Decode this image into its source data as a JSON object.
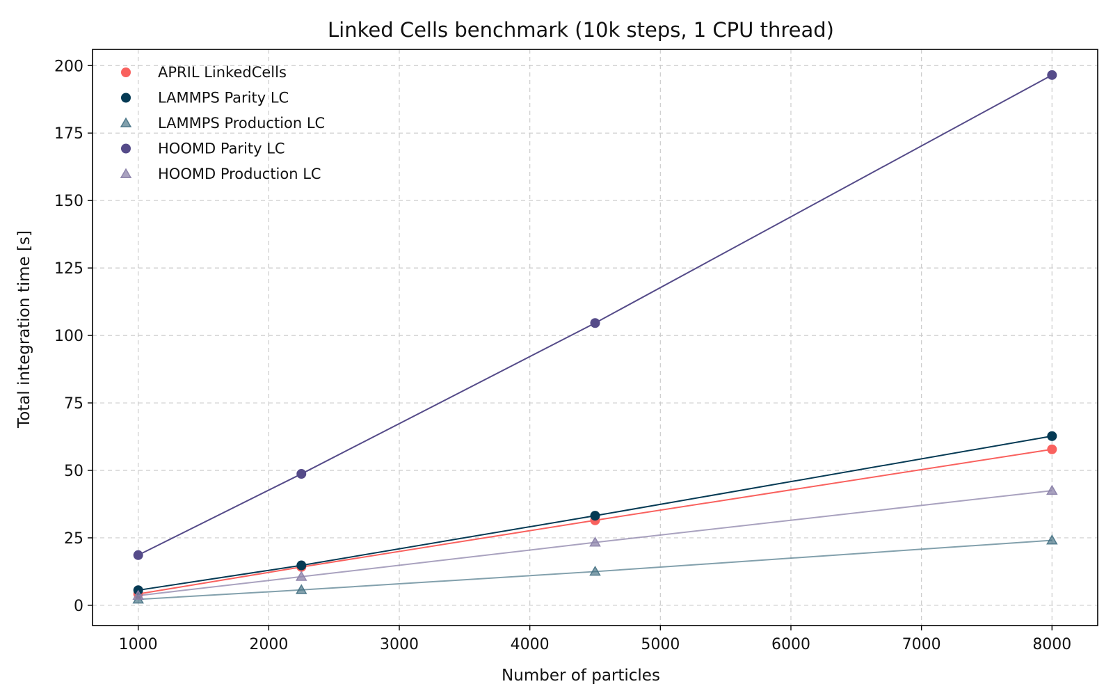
{
  "chart_data": {
    "type": "line",
    "title": "Linked Cells benchmark (10k steps, 1 CPU thread)",
    "xlabel": "Number of particles",
    "ylabel": "Total integration time [s]",
    "xlim": [
      650,
      8350
    ],
    "ylim": [
      -7.5,
      206
    ],
    "xticks": [
      1000,
      2000,
      3000,
      4000,
      5000,
      6000,
      7000,
      8000
    ],
    "yticks": [
      0,
      25,
      50,
      75,
      100,
      125,
      150,
      175,
      200
    ],
    "grid": true,
    "legend_position": "top-left",
    "x": [
      1000,
      2250,
      4500,
      8000
    ],
    "series": [
      {
        "name": "APRIL LinkedCells",
        "values": [
          4.2,
          14.2,
          31.5,
          57.8
        ],
        "color": "#f9615e",
        "marker": "circle",
        "opacity": 1.0
      },
      {
        "name": "LAMMPS Parity LC",
        "values": [
          5.6,
          14.8,
          33.2,
          62.7
        ],
        "color": "#053a54",
        "marker": "circle",
        "opacity": 1.0
      },
      {
        "name": "LAMMPS Production LC",
        "values": [
          2.2,
          5.7,
          12.5,
          24.1
        ],
        "color": "#3f6d80",
        "marker": "triangle",
        "opacity": 0.65
      },
      {
        "name": "HOOMD Parity LC",
        "values": [
          18.6,
          48.7,
          104.6,
          196.5
        ],
        "color": "#554b89",
        "marker": "circle",
        "opacity": 1.0
      },
      {
        "name": "HOOMD Production LC",
        "values": [
          3.6,
          10.6,
          23.3,
          42.5
        ],
        "color": "#8c83aa",
        "marker": "triangle",
        "opacity": 0.75
      }
    ]
  }
}
